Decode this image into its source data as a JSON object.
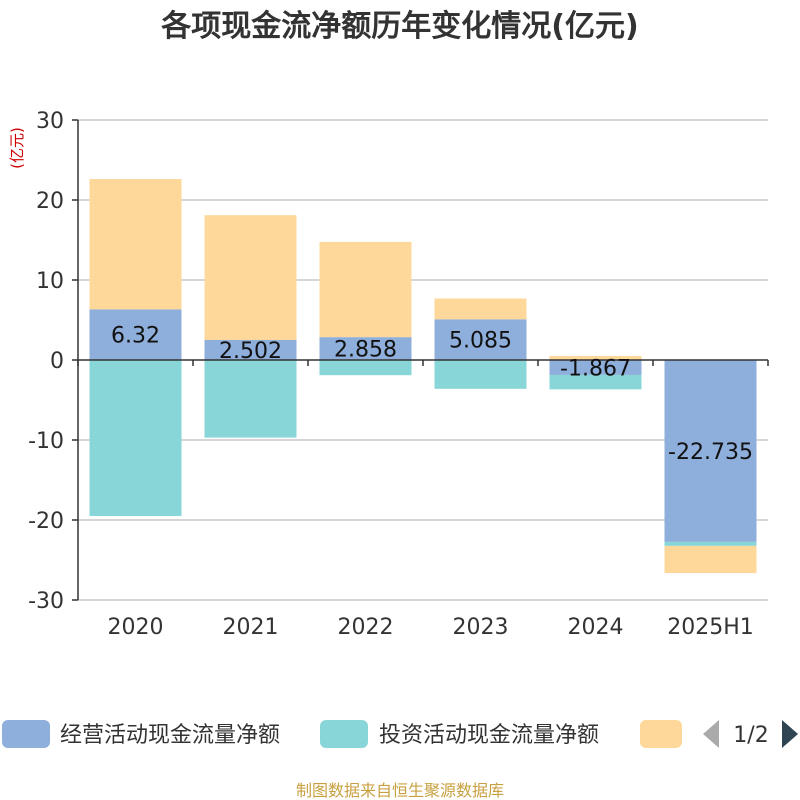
{
  "chart_data": {
    "type": "bar",
    "stacked": true,
    "title": "各项现金流净额历年变化情况(亿元)",
    "ylabel": "(亿元)",
    "categories": [
      "2020",
      "2021",
      "2022",
      "2023",
      "2024",
      "2025H1"
    ],
    "ylim": [
      -30,
      30
    ],
    "yticks": [
      30,
      20,
      10,
      0,
      -10,
      -20,
      -30
    ],
    "grid": true,
    "legend_position": "bottom",
    "series": [
      {
        "name": "经营活动现金流量净额",
        "color": "#8eaedb",
        "values": [
          6.32,
          2.502,
          2.858,
          5.085,
          -1.867,
          -22.735
        ],
        "labels": [
          "6.32",
          "2.502",
          "2.858",
          "5.085",
          "-1.867",
          "-22.735"
        ]
      },
      {
        "name": "投资活动现金流量净额",
        "color": "#88d6d8",
        "values": [
          -19.5,
          -9.7,
          -1.9,
          -3.6,
          -1.8,
          -0.5
        ]
      },
      {
        "name": "",
        "color": "#fdd89a",
        "values": [
          16.3,
          15.6,
          11.9,
          2.6,
          0.5,
          -3.4
        ]
      }
    ]
  },
  "legend": {
    "page": "1/2"
  },
  "source": "制图数据来自恒生聚源数据库"
}
